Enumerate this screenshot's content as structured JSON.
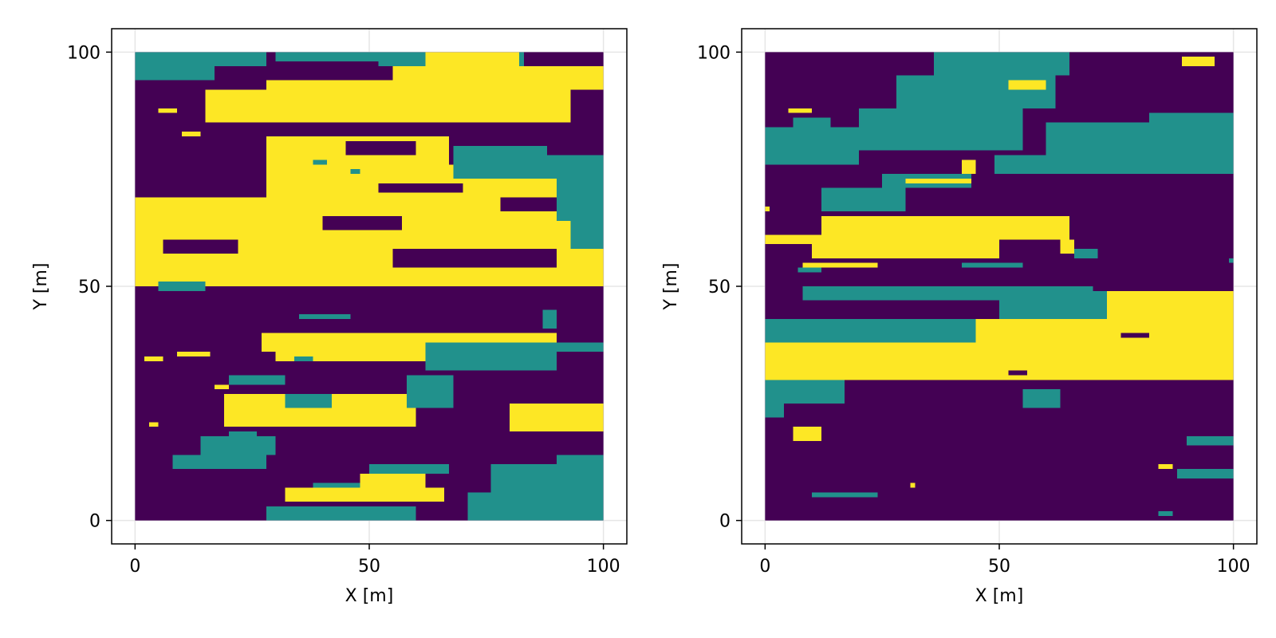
{
  "chart_data": [
    {
      "type": "heatmap",
      "xlabel": "X [m]",
      "ylabel": "Y [m]",
      "xlim": [
        -5,
        105
      ],
      "ylim": [
        -5,
        105
      ],
      "data_extent": [
        0,
        100
      ],
      "xticks": [
        0,
        50,
        100
      ],
      "yticks": [
        0,
        50,
        100
      ],
      "xtick_labels": [
        "0",
        "50",
        "100"
      ],
      "ytick_labels": [
        "0",
        "50",
        "100"
      ],
      "grid": true,
      "colors": [
        "#440154",
        "#21918c",
        "#fde725"
      ],
      "rects": [
        [
          0,
          94,
          17,
          100,
          1
        ],
        [
          17,
          97,
          28,
          100,
          1
        ],
        [
          30,
          98,
          52,
          100,
          1
        ],
        [
          52,
          97,
          83,
          100,
          1
        ],
        [
          15,
          85,
          93,
          92,
          2
        ],
        [
          28,
          89,
          88,
          94,
          2
        ],
        [
          55,
          92,
          100,
          97,
          2
        ],
        [
          62,
          96,
          82,
          100,
          2
        ],
        [
          5,
          87,
          9,
          88,
          2
        ],
        [
          10,
          82,
          14,
          83,
          2
        ],
        [
          0,
          50,
          100,
          69,
          2
        ],
        [
          28,
          69,
          100,
          76,
          2
        ],
        [
          28,
          76,
          67,
          82,
          2
        ],
        [
          6,
          57,
          22,
          60,
          0
        ],
        [
          40,
          62,
          57,
          65,
          0
        ],
        [
          55,
          54,
          90,
          58,
          0
        ],
        [
          78,
          66,
          100,
          69,
          0
        ],
        [
          52,
          70,
          70,
          72,
          0
        ],
        [
          45,
          78,
          60,
          81,
          0
        ],
        [
          68,
          73,
          100,
          78,
          1
        ],
        [
          68,
          78,
          88,
          80,
          1
        ],
        [
          90,
          64,
          100,
          76,
          1
        ],
        [
          93,
          58,
          100,
          64,
          1
        ],
        [
          38,
          76,
          41,
          77,
          1
        ],
        [
          46,
          74,
          48,
          75,
          1
        ],
        [
          5,
          49,
          15,
          51,
          1
        ],
        [
          27,
          36,
          90,
          40,
          2
        ],
        [
          30,
          34,
          82,
          36,
          2
        ],
        [
          2,
          34,
          6,
          35,
          2
        ],
        [
          9,
          35,
          16,
          36,
          2
        ],
        [
          19,
          20,
          60,
          27,
          2
        ],
        [
          17,
          28,
          20,
          29,
          2
        ],
        [
          80,
          19,
          100,
          25,
          2
        ],
        [
          3,
          20,
          5,
          21,
          2
        ],
        [
          32,
          4,
          66,
          7,
          2
        ],
        [
          48,
          7,
          62,
          10,
          2
        ],
        [
          72,
          2,
          82,
          5,
          2
        ],
        [
          34,
          34,
          38,
          35,
          1
        ],
        [
          20,
          29,
          32,
          31,
          1
        ],
        [
          32,
          24,
          42,
          27,
          1
        ],
        [
          58,
          24,
          68,
          31,
          1
        ],
        [
          62,
          32,
          90,
          38,
          1
        ],
        [
          88,
          36,
          100,
          38,
          1
        ],
        [
          8,
          11,
          28,
          14,
          1
        ],
        [
          14,
          14,
          30,
          18,
          1
        ],
        [
          20,
          18,
          26,
          19,
          1
        ],
        [
          28,
          0,
          60,
          3,
          1
        ],
        [
          38,
          7,
          48,
          8,
          1
        ],
        [
          50,
          10,
          67,
          12,
          1
        ],
        [
          71,
          0,
          100,
          6,
          1
        ],
        [
          76,
          6,
          93,
          12,
          1
        ],
        [
          90,
          0,
          100,
          14,
          1
        ],
        [
          35,
          43,
          46,
          44,
          1
        ],
        [
          87,
          41,
          90,
          45,
          1
        ]
      ]
    },
    {
      "type": "heatmap",
      "xlabel": "X [m]",
      "ylabel": "Y [m]",
      "xlim": [
        -5,
        105
      ],
      "ylim": [
        -5,
        105
      ],
      "data_extent": [
        0,
        100
      ],
      "xticks": [
        0,
        50,
        100
      ],
      "yticks": [
        0,
        50,
        100
      ],
      "xtick_labels": [
        "0",
        "50",
        "100"
      ],
      "ytick_labels": [
        "0",
        "50",
        "100"
      ],
      "grid": true,
      "colors": [
        "#440154",
        "#21918c",
        "#fde725"
      ],
      "rects": [
        [
          0,
          76,
          20,
          84,
          1
        ],
        [
          20,
          79,
          55,
          88,
          1
        ],
        [
          28,
          88,
          62,
          95,
          1
        ],
        [
          36,
          95,
          65,
          100,
          1
        ],
        [
          25,
          71,
          44,
          74,
          1
        ],
        [
          12,
          66,
          30,
          71,
          1
        ],
        [
          49,
          74,
          100,
          78,
          1
        ],
        [
          60,
          78,
          100,
          85,
          1
        ],
        [
          82,
          85,
          100,
          87,
          1
        ],
        [
          6,
          84,
          14,
          86,
          1
        ],
        [
          8,
          47,
          70,
          50,
          1
        ],
        [
          0,
          38,
          65,
          43,
          1
        ],
        [
          50,
          43,
          75,
          49,
          1
        ],
        [
          0,
          25,
          17,
          31,
          1
        ],
        [
          0,
          22,
          4,
          25,
          1
        ],
        [
          55,
          24,
          63,
          28,
          1
        ],
        [
          7,
          53,
          12,
          54,
          1
        ],
        [
          42,
          54,
          55,
          55,
          1
        ],
        [
          66,
          56,
          71,
          58,
          1
        ],
        [
          10,
          5,
          24,
          6,
          1
        ],
        [
          90,
          16,
          100,
          18,
          1
        ],
        [
          88,
          9,
          100,
          11,
          1
        ],
        [
          84,
          1,
          87,
          2,
          1
        ],
        [
          99,
          55,
          100,
          56,
          1
        ],
        [
          0,
          30,
          100,
          38,
          2
        ],
        [
          45,
          38,
          100,
          43,
          2
        ],
        [
          73,
          43,
          100,
          49,
          2
        ],
        [
          0,
          59,
          12,
          61,
          2
        ],
        [
          10,
          56,
          50,
          60,
          2
        ],
        [
          12,
          60,
          65,
          65,
          2
        ],
        [
          30,
          72,
          44,
          73,
          2
        ],
        [
          42,
          74,
          45,
          77,
          2
        ],
        [
          8,
          54,
          24,
          55,
          2
        ],
        [
          6,
          17,
          12,
          20,
          2
        ],
        [
          84,
          11,
          87,
          12,
          2
        ],
        [
          89,
          97,
          96,
          99,
          2
        ],
        [
          52,
          92,
          60,
          94,
          2
        ],
        [
          5,
          87,
          10,
          88,
          2
        ],
        [
          63,
          57,
          66,
          60,
          2
        ],
        [
          0,
          66,
          1,
          67,
          2
        ],
        [
          31,
          7,
          32,
          8,
          2
        ],
        [
          76,
          39,
          82,
          40,
          0
        ],
        [
          52,
          31,
          56,
          32,
          0
        ]
      ]
    }
  ]
}
